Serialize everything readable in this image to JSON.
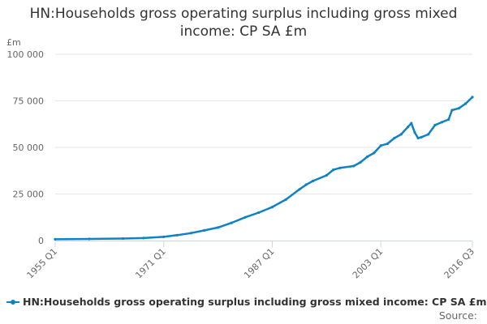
{
  "chart_data": {
    "type": "line",
    "title": "HN:Households gross operating surplus including gross mixed income: CP SA £m",
    "ylabel": "£m",
    "xlabel": "",
    "ylim": [
      0,
      100000
    ],
    "yticks": [
      {
        "value": 0,
        "label": "0"
      },
      {
        "value": 25000,
        "label": "25 000"
      },
      {
        "value": 50000,
        "label": "50 000"
      },
      {
        "value": 75000,
        "label": "75 000"
      },
      {
        "value": 100000,
        "label": "100 000"
      }
    ],
    "xlim": [
      "1955 Q1",
      "2016 Q3"
    ],
    "xticks": [
      "1955 Q1",
      "1971 Q1",
      "1987 Q1",
      "2003 Q1",
      "2016 Q3"
    ],
    "grid": true,
    "legend_position": "bottom",
    "series": [
      {
        "name": "HN:Households gross operating surplus including gross mixed income: CP SA £m",
        "color": "#0f82c5",
        "points": [
          [
            "1955 Q1",
            700
          ],
          [
            "1960 Q1",
            850
          ],
          [
            "1965 Q1",
            1100
          ],
          [
            "1968 Q1",
            1350
          ],
          [
            "1971 Q1",
            2000
          ],
          [
            "1973 Q1",
            2900
          ],
          [
            "1975 Q1",
            4000
          ],
          [
            "1977 Q1",
            5500
          ],
          [
            "1979 Q1",
            7000
          ],
          [
            "1981 Q1",
            9500
          ],
          [
            "1983 Q1",
            12500
          ],
          [
            "1985 Q1",
            15000
          ],
          [
            "1987 Q1",
            18000
          ],
          [
            "1989 Q1",
            22000
          ],
          [
            "1991 Q1",
            27500
          ],
          [
            "1992 Q1",
            30000
          ],
          [
            "1993 Q1",
            32000
          ],
          [
            "1995 Q1",
            35000
          ],
          [
            "1996 Q1",
            38000
          ],
          [
            "1997 Q1",
            39000
          ],
          [
            "1999 Q1",
            40000
          ],
          [
            "2000 Q1",
            42000
          ],
          [
            "2001 Q1",
            45000
          ],
          [
            "2002 Q1",
            47000
          ],
          [
            "2003 Q1",
            51000
          ],
          [
            "2004 Q1",
            52000
          ],
          [
            "2005 Q1",
            55000
          ],
          [
            "2006 Q1",
            57000
          ],
          [
            "2007 Q1",
            61000
          ],
          [
            "2007 Q3",
            63000
          ],
          [
            "2008 Q1",
            58000
          ],
          [
            "2008 Q3",
            55000
          ],
          [
            "2009 Q1",
            55500
          ],
          [
            "2010 Q1",
            57000
          ],
          [
            "2011 Q1",
            62000
          ],
          [
            "2012 Q1",
            63500
          ],
          [
            "2013 Q1",
            65000
          ],
          [
            "2013 Q3",
            70000
          ],
          [
            "2014 Q3",
            71000
          ],
          [
            "2015 Q3",
            73500
          ],
          [
            "2016 Q3",
            77000
          ]
        ]
      }
    ]
  },
  "source_label": "Source:"
}
